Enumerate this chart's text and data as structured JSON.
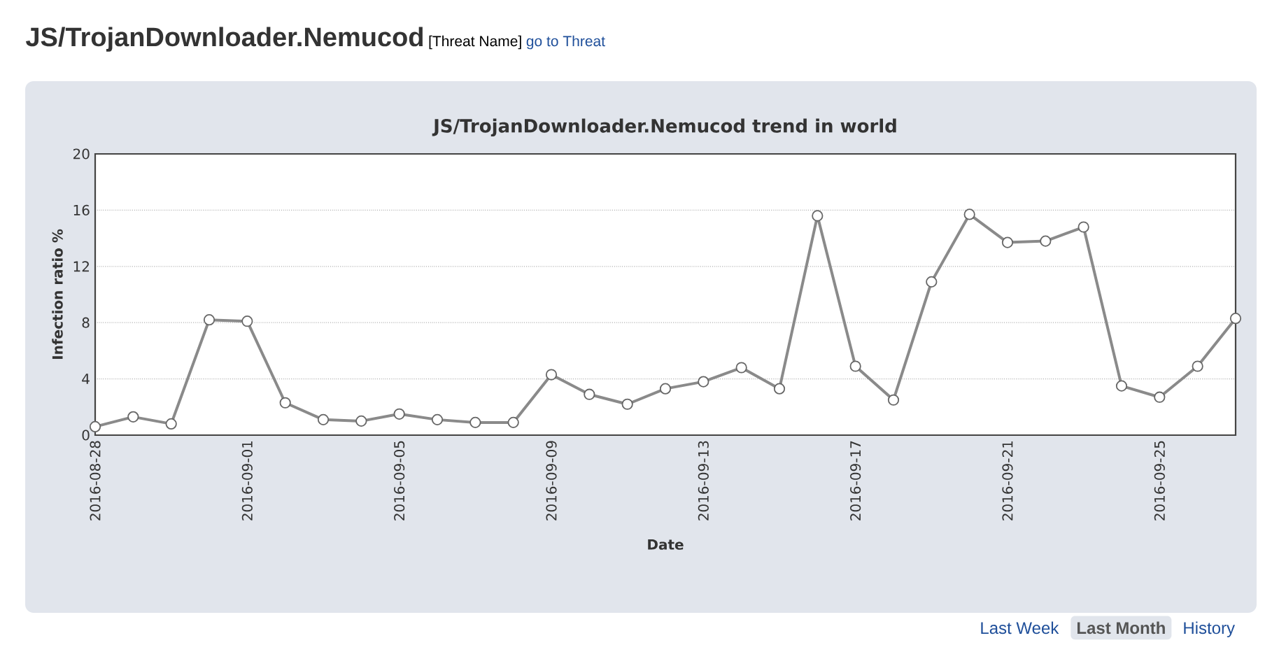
{
  "chart_data": {
    "type": "line",
    "title": "JS/TrojanDownloader.Nemucod trend in world",
    "xlabel": "Date",
    "ylabel": "Infection ratio %",
    "annotations": [
      "JS/TrojanDownloader.Nemucod",
      "[Threat Name]",
      "go to Threat",
      "Last Week",
      "Last Month",
      "History"
    ],
    "x": [
      "2016-08-28",
      "2016-08-29",
      "2016-08-30",
      "2016-08-31",
      "2016-09-01",
      "2016-09-02",
      "2016-09-03",
      "2016-09-04",
      "2016-09-05",
      "2016-09-06",
      "2016-09-07",
      "2016-09-08",
      "2016-09-09",
      "2016-09-10",
      "2016-09-11",
      "2016-09-12",
      "2016-09-13",
      "2016-09-14",
      "2016-09-15",
      "2016-09-16",
      "2016-09-17",
      "2016-09-18",
      "2016-09-19",
      "2016-09-20",
      "2016-09-21",
      "2016-09-22",
      "2016-09-23",
      "2016-09-24",
      "2016-09-25",
      "2016-09-26",
      "2016-09-27"
    ],
    "series": [
      {
        "color": "#8a8a8a",
        "values": [
          0.6,
          1.3,
          0.8,
          8.2,
          8.1,
          2.3,
          1.1,
          1.0,
          1.5,
          1.1,
          0.9,
          0.9,
          4.3,
          2.9,
          2.2,
          3.3,
          3.8,
          4.8,
          3.3,
          15.6,
          4.9,
          2.5,
          10.9,
          15.7,
          13.7,
          13.8,
          14.8,
          3.5,
          2.7,
          4.9,
          8.3
        ]
      }
    ],
    "xlim": [
      "2016-08-28",
      "2016-09-27"
    ],
    "xticks": [
      "2016-08-28",
      "2016-09-01",
      "2016-09-05",
      "2016-09-09",
      "2016-09-13",
      "2016-09-17",
      "2016-09-21",
      "2016-09-25"
    ],
    "ylim": [
      0,
      20
    ],
    "yticks": [
      0,
      4,
      8,
      12,
      16,
      20
    ],
    "grid": "y",
    "marker": "circle",
    "line_style": "solid"
  }
}
